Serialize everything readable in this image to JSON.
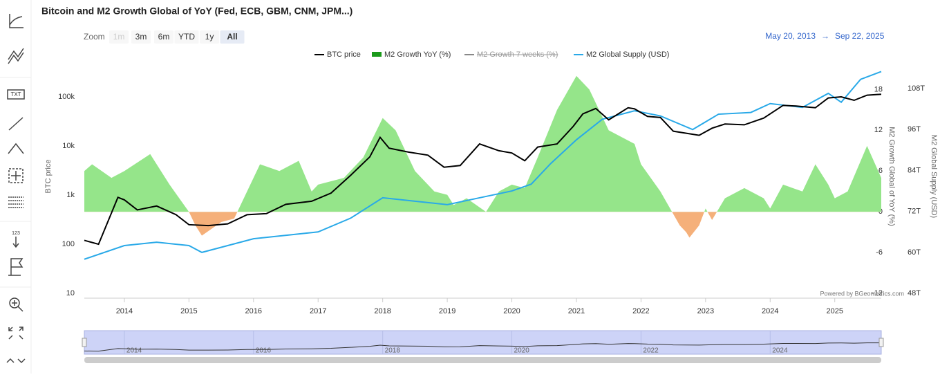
{
  "header": {
    "title": "Bitcoin and M2 Growth Global of YoY (Fed, ECB, GBM, CNM, JPM...)"
  },
  "toolbar": {
    "labels": [
      "TXT",
      "123"
    ]
  },
  "range_selector": {
    "label": "Zoom",
    "buttons": [
      "1m",
      "3m",
      "6m",
      "YTD",
      "1y",
      "All"
    ],
    "selected": "All",
    "disabled": [
      "1m"
    ],
    "from": "May 20, 2013",
    "separator": "→",
    "to": "Sep 22, 2025"
  },
  "chart_data": {
    "type": "line",
    "ylabel": "BTC price",
    "y2label": "M2 Growth Global of YoY (%)",
    "y3label": "M2 Global Supply (USD)",
    "credits": "Powered by BGeometrics.com",
    "xlim": [
      2013.38,
      2025.72
    ],
    "xticks": [
      2014,
      2015,
      2016,
      2017,
      2018,
      2019,
      2020,
      2021,
      2022,
      2023,
      2024,
      2025
    ],
    "ylim": [
      8,
      430000
    ],
    "log_scale": true,
    "yticks": [
      10,
      100,
      {
        "value": 1000,
        "label": "1k"
      },
      {
        "value": 10000,
        "label": "10k"
      },
      {
        "value": 100000,
        "label": "100k"
      }
    ],
    "y2lim": [
      -12.7,
      21.5
    ],
    "y2ticks": [
      -12,
      -6,
      0,
      6,
      12,
      18
    ],
    "y3lim": [
      46.6,
      114.7
    ],
    "y3ticks": [
      {
        "value": 48,
        "label": "48T"
      },
      {
        "value": 60,
        "label": "60T"
      },
      {
        "value": 72,
        "label": "72T"
      },
      {
        "value": 84,
        "label": "84T"
      },
      {
        "value": 96,
        "label": "96T"
      },
      {
        "value": 108,
        "label": "108T"
      }
    ],
    "grid": false,
    "navigator_ticks": [
      2014,
      2016,
      2018,
      2020,
      2022,
      2024
    ],
    "series": [
      {
        "name": "BTC price",
        "color": "#000000",
        "axis": "y",
        "visible": true,
        "x": [
          2013.38,
          2013.6,
          2013.9,
          2014.0,
          2014.2,
          2014.5,
          2014.8,
          2015.0,
          2015.3,
          2015.6,
          2015.9,
          2016.2,
          2016.5,
          2016.9,
          2017.2,
          2017.5,
          2017.8,
          2017.96,
          2018.1,
          2018.4,
          2018.7,
          2018.95,
          2019.2,
          2019.5,
          2019.8,
          2020.0,
          2020.2,
          2020.4,
          2020.7,
          2020.95,
          2021.1,
          2021.3,
          2021.5,
          2021.8,
          2021.9,
          2022.1,
          2022.3,
          2022.5,
          2022.9,
          2023.1,
          2023.3,
          2023.6,
          2023.9,
          2024.2,
          2024.4,
          2024.7,
          2024.9,
          2025.1,
          2025.3,
          2025.5,
          2025.72
        ],
        "values": [
          120,
          100,
          900,
          800,
          500,
          600,
          400,
          250,
          240,
          260,
          400,
          420,
          650,
          750,
          1100,
          2500,
          6000,
          15000,
          9000,
          7500,
          6500,
          3700,
          4000,
          11000,
          8000,
          7200,
          5000,
          9500,
          11000,
          25000,
          45000,
          58000,
          34000,
          60000,
          57000,
          40000,
          38000,
          20000,
          16500,
          23000,
          28000,
          27000,
          37000,
          67000,
          65000,
          60000,
          95000,
          100000,
          85000,
          108000,
          113000
        ]
      },
      {
        "name": "M2 Growth YoY (%)",
        "color": "#95e58a",
        "negative_color": "#f5b07a",
        "axis": "y2",
        "visible": true,
        "x": [
          2013.38,
          2013.5,
          2013.8,
          2014.0,
          2014.4,
          2014.7,
          2015.0,
          2015.1,
          2015.2,
          2015.5,
          2015.7,
          2015.8,
          2016.1,
          2016.4,
          2016.7,
          2016.9,
          2017.0,
          2017.4,
          2017.7,
          2018.0,
          2018.2,
          2018.5,
          2018.8,
          2019.0,
          2019.1,
          2019.3,
          2019.6,
          2019.8,
          2020.0,
          2020.2,
          2020.4,
          2020.7,
          2021.0,
          2021.2,
          2021.5,
          2021.9,
          2022.0,
          2022.3,
          2022.6,
          2022.7,
          2022.75,
          2022.9,
          2023.0,
          2023.1,
          2023.3,
          2023.6,
          2023.9,
          2024.0,
          2024.2,
          2024.5,
          2024.7,
          2024.9,
          2025.0,
          2025.2,
          2025.5,
          2025.72
        ],
        "values": [
          6,
          7,
          5,
          6,
          8.5,
          4,
          0,
          -2,
          -3.5,
          -1.5,
          -1,
          1,
          7,
          6,
          7.5,
          3,
          4,
          5,
          8,
          13.8,
          12,
          6,
          3,
          2.5,
          1,
          2,
          0,
          3,
          4,
          3.5,
          8,
          15,
          20,
          18,
          12,
          10,
          7,
          3,
          -2,
          -3,
          -3.8,
          -2,
          0.5,
          -1.2,
          2,
          3.5,
          2,
          0.5,
          4,
          3,
          7,
          4,
          2,
          3,
          9.7,
          5
        ]
      },
      {
        "name": "M2 Growth 7 weeks (%)",
        "color": "#888888",
        "axis": "y2",
        "visible": false
      },
      {
        "name": "M2 Global Supply (USD)",
        "color": "#29a9e8",
        "axis": "y3",
        "visible": true,
        "x": [
          2013.38,
          2014.0,
          2014.5,
          2015.0,
          2015.2,
          2016.0,
          2017.0,
          2017.5,
          2018.0,
          2018.5,
          2019.0,
          2019.5,
          2020.0,
          2020.3,
          2020.6,
          2021.0,
          2021.4,
          2021.9,
          2022.3,
          2022.8,
          2023.2,
          2023.7,
          2024.0,
          2024.5,
          2024.9,
          2025.1,
          2025.4,
          2025.72
        ],
        "values": [
          58,
          62,
          63,
          62,
          60,
          64,
          66,
          70,
          76,
          75,
          74,
          76,
          78,
          80,
          86,
          93,
          99,
          101.5,
          100,
          96,
          100.5,
          101,
          103.6,
          102.5,
          106.6,
          104,
          110.7,
          113
        ]
      }
    ]
  }
}
